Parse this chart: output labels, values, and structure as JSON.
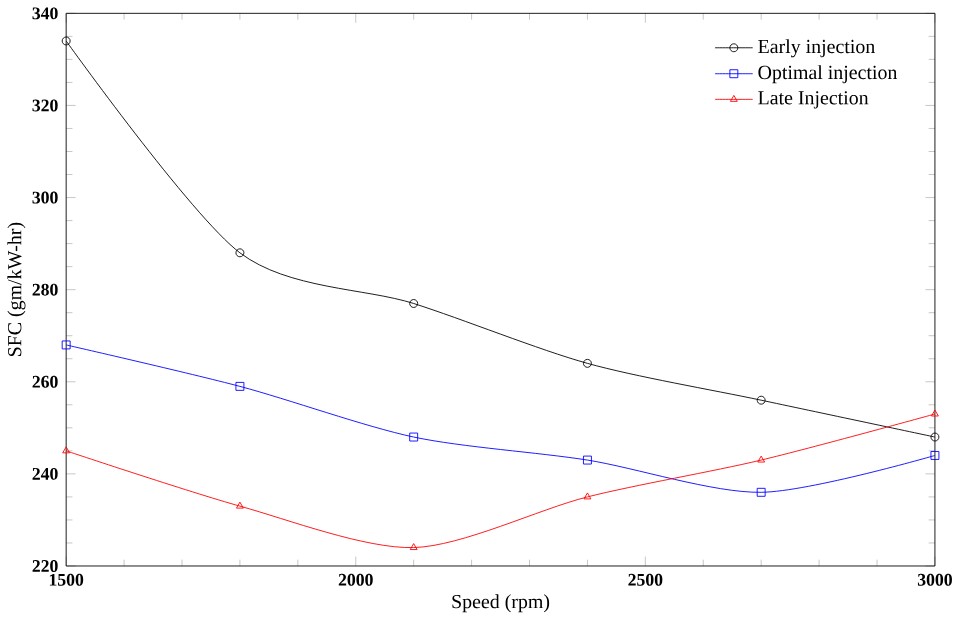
{
  "chart_data": {
    "type": "line",
    "xlabel": "Speed (rpm)",
    "ylabel": "SFC (gm/kW-hr)",
    "x": [
      1500,
      1800,
      2100,
      2400,
      2700,
      3000
    ],
    "xlim": [
      1500,
      3000
    ],
    "xticks": [
      1500,
      2000,
      2500,
      3000
    ],
    "ylim": [
      220,
      340
    ],
    "yticks": [
      220,
      240,
      260,
      280,
      300,
      320,
      340
    ],
    "legend": "top right",
    "series": [
      {
        "name": "Early injection",
        "color": "#000000",
        "marker": "circle",
        "values": [
          334,
          288,
          277,
          264,
          256,
          248
        ]
      },
      {
        "name": "Optimal injection",
        "color": "#0000ff",
        "marker": "square",
        "values": [
          268,
          259,
          248,
          243,
          236,
          244
        ]
      },
      {
        "name": "Late Injection",
        "color": "#ff0000",
        "marker": "triangle",
        "values": [
          245,
          233,
          224,
          235,
          243,
          253
        ]
      }
    ]
  }
}
